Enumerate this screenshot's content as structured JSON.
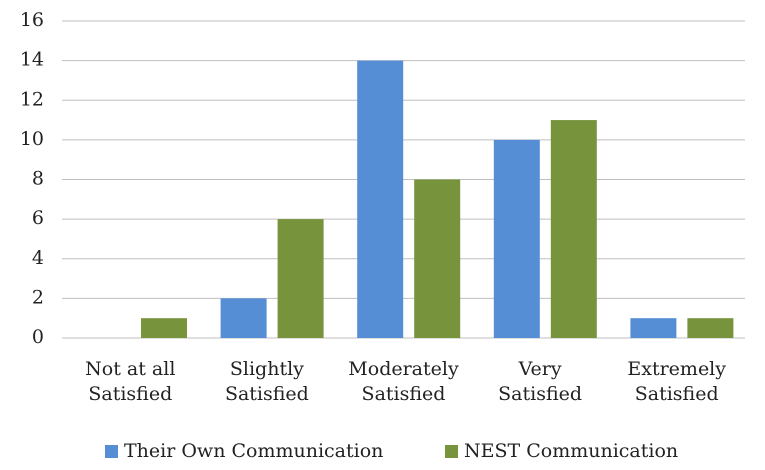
{
  "chart_data": {
    "type": "bar",
    "categories": [
      [
        "Not at all",
        "Satisfied"
      ],
      [
        "Slightly",
        "Satisfied"
      ],
      [
        "Moderately",
        "Satisfied"
      ],
      [
        "Very",
        "Satisfied"
      ],
      [
        "Extremely",
        "Satisfied"
      ]
    ],
    "series": [
      {
        "name": "Their Own Communication",
        "color": "#558ed5",
        "values": [
          0,
          2,
          14,
          10,
          1
        ]
      },
      {
        "name": "NEST Communication",
        "color": "#77933c",
        "values": [
          1,
          6,
          8,
          11,
          1
        ]
      }
    ],
    "ylim": [
      0,
      16
    ],
    "yticks": [
      0,
      2,
      4,
      6,
      8,
      10,
      12,
      14,
      16
    ],
    "grid": true,
    "legend": "bottom"
  }
}
